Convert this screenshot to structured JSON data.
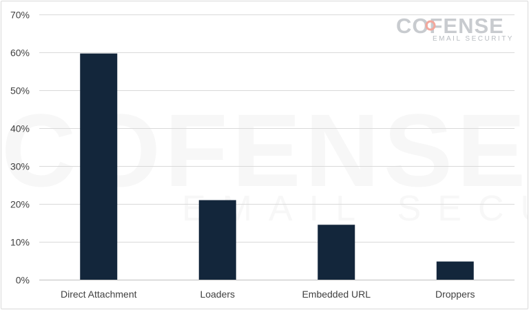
{
  "chart_data": {
    "type": "bar",
    "categories": [
      "Direct Attachment",
      "Loaders",
      "Embedded URL",
      "Droppers"
    ],
    "values": [
      59.7,
      21.0,
      14.5,
      4.8
    ],
    "ylim": [
      0,
      70
    ],
    "yticks": [
      0,
      10,
      20,
      30,
      40,
      50,
      60,
      70
    ],
    "ytick_labels": [
      "0%",
      "10%",
      "20%",
      "30%",
      "40%",
      "50%",
      "60%",
      "70%"
    ],
    "bar_color": "#13263b",
    "grid": true,
    "title": "",
    "xlabel": "",
    "ylabel": ""
  },
  "logo": {
    "name": "COFENSE",
    "tagline": "EMAIL SECURITY",
    "accent_color": "#f3a79c"
  }
}
